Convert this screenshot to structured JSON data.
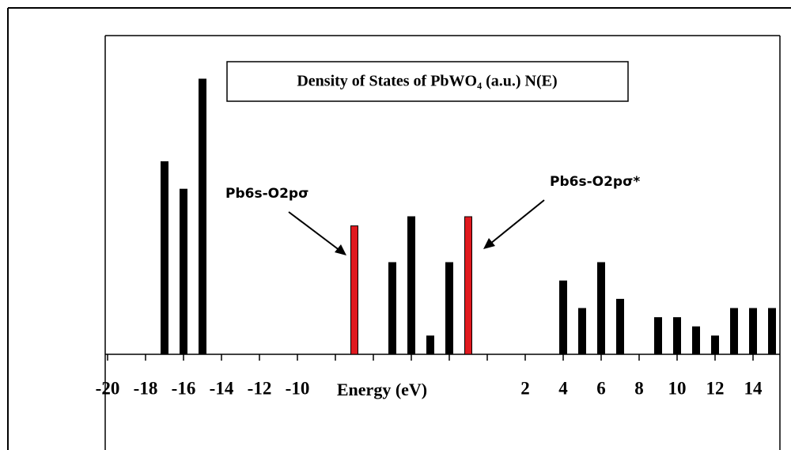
{
  "chart_data": {
    "type": "bar",
    "title": "Density of States of PbWO₄ (a.u.) N(E)",
    "xlabel": "Energy (eV)",
    "x": [
      -17,
      -16,
      -15,
      -7,
      -5,
      -4,
      -3,
      -2,
      -1,
      4,
      5,
      6,
      7,
      9,
      10,
      11,
      12,
      13,
      14,
      15
    ],
    "values": [
      21,
      18,
      30,
      14,
      10,
      15,
      2,
      10,
      15,
      8,
      5,
      10,
      6,
      4,
      4,
      3,
      2,
      5,
      5,
      5
    ],
    "colors": [
      "#000000",
      "#000000",
      "#000000",
      "#e0191f",
      "#000000",
      "#000000",
      "#000000",
      "#000000",
      "#e0191f",
      "#000000",
      "#000000",
      "#000000",
      "#000000",
      "#000000",
      "#000000",
      "#000000",
      "#000000",
      "#000000",
      "#000000",
      "#000000"
    ],
    "xlim": [
      -20,
      15
    ],
    "ylim": [
      0,
      35
    ],
    "xticks": [
      -20,
      -18,
      -16,
      -14,
      -12,
      -10,
      -8,
      -6,
      -4,
      -2,
      0,
      2,
      4,
      6,
      8,
      10,
      12,
      14
    ],
    "annotations": [
      "Pb6s-O2pσ",
      "Pb6s-O2pσ*"
    ]
  }
}
